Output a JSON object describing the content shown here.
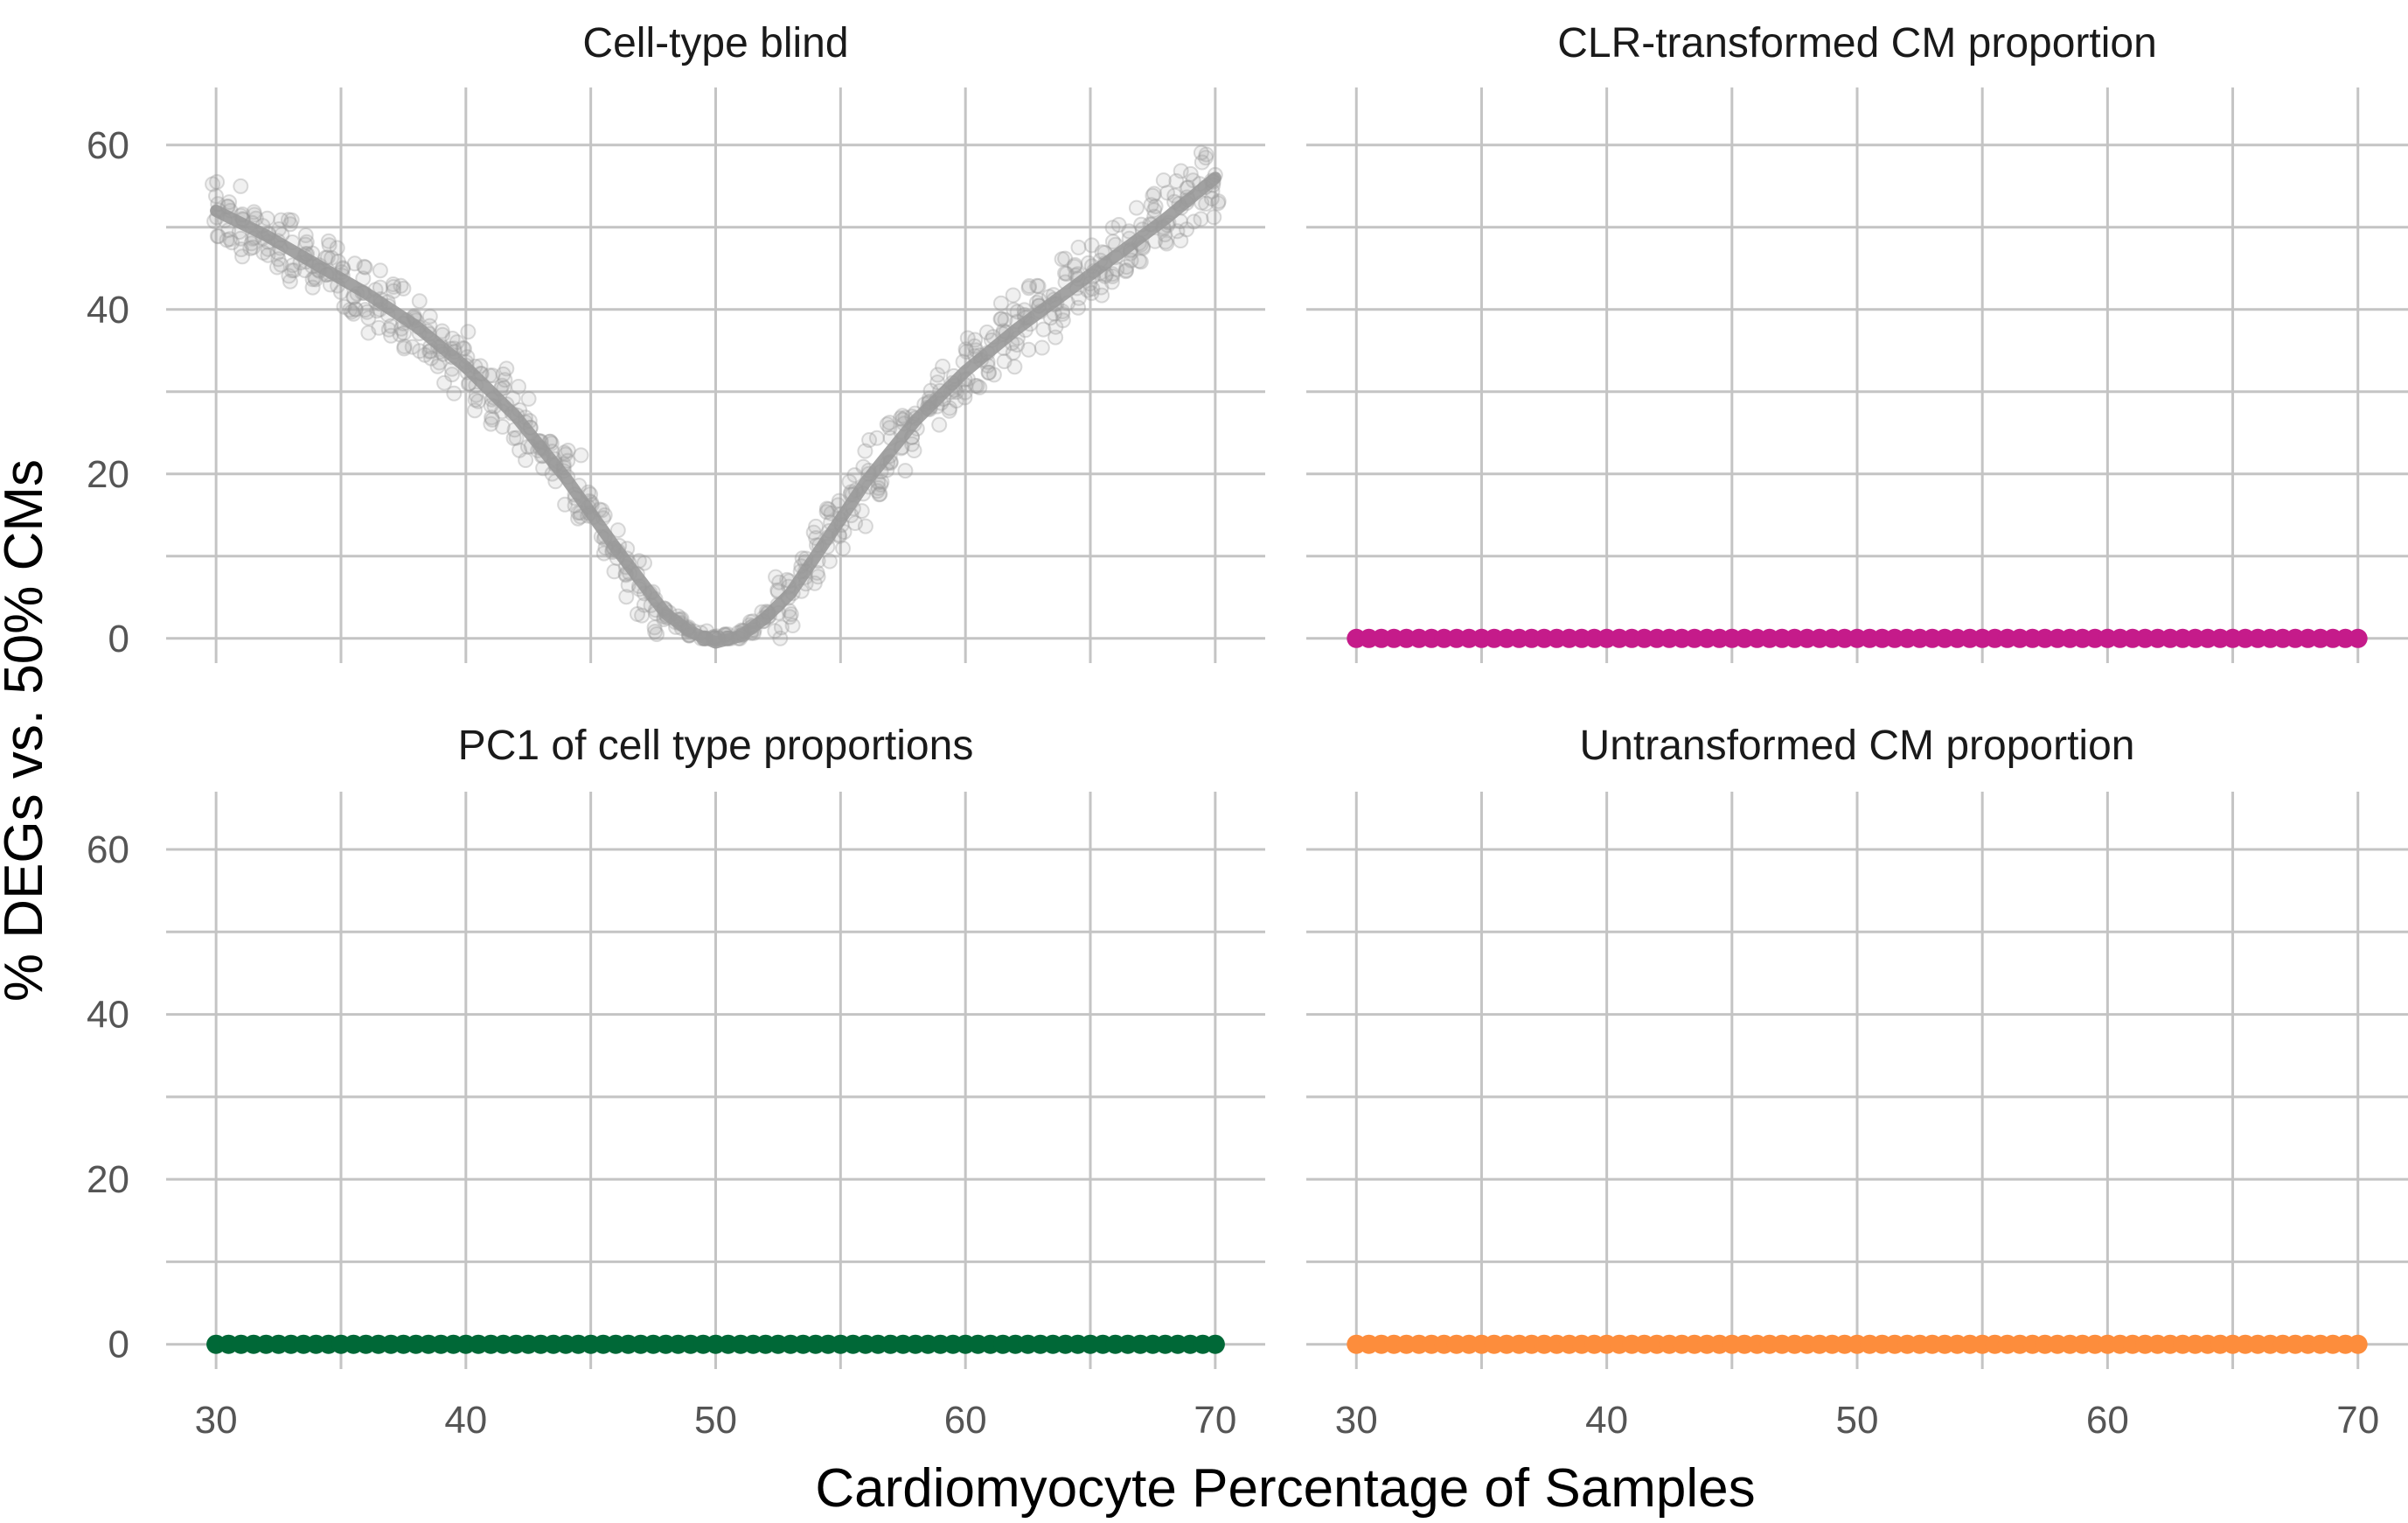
{
  "chart_data": {
    "type": "scatter",
    "facet_layout": "2x2",
    "xlabel": "Cardiomyocyte Percentage of Samples",
    "ylabel": "% DEGs vs. 50% CMs",
    "xlim": [
      28,
      72
    ],
    "ylim": [
      -3,
      67
    ],
    "x_ticks": [
      30,
      40,
      50,
      60,
      70
    ],
    "y_ticks": [
      0,
      20,
      40,
      60
    ],
    "grid": true,
    "legend": "none",
    "panels": [
      {
        "title": "Cell-type blind",
        "color": "#999999",
        "points_alpha": 0.25,
        "smooth_line": true,
        "trend": [
          {
            "x": 30,
            "y": 52
          },
          {
            "x": 32,
            "y": 49
          },
          {
            "x": 34,
            "y": 45.5
          },
          {
            "x": 36,
            "y": 42
          },
          {
            "x": 38,
            "y": 38
          },
          {
            "x": 40,
            "y": 33
          },
          {
            "x": 42,
            "y": 27
          },
          {
            "x": 44,
            "y": 19.5
          },
          {
            "x": 46,
            "y": 11
          },
          {
            "x": 47,
            "y": 7
          },
          {
            "x": 48,
            "y": 3
          },
          {
            "x": 49,
            "y": 0.8
          },
          {
            "x": 50,
            "y": -0.5
          },
          {
            "x": 51,
            "y": 0.3
          },
          {
            "x": 52,
            "y": 2.5
          },
          {
            "x": 53,
            "y": 5.5
          },
          {
            "x": 54,
            "y": 10
          },
          {
            "x": 56,
            "y": 19
          },
          {
            "x": 58,
            "y": 26.5
          },
          {
            "x": 60,
            "y": 32.5
          },
          {
            "x": 62,
            "y": 37.5
          },
          {
            "x": 64,
            "y": 42
          },
          {
            "x": 66,
            "y": 46.5
          },
          {
            "x": 68,
            "y": 51
          },
          {
            "x": 70,
            "y": 56
          }
        ]
      },
      {
        "title": "CLR-transformed CM proportion",
        "color": "#C51B8A",
        "constant_y": 0
      },
      {
        "title": "PC1 of cell type proportions",
        "color": "#006837",
        "constant_y": 0
      },
      {
        "title": "Untransformed CM proportion",
        "color": "#FD8D3C",
        "constant_y": 0
      }
    ]
  }
}
